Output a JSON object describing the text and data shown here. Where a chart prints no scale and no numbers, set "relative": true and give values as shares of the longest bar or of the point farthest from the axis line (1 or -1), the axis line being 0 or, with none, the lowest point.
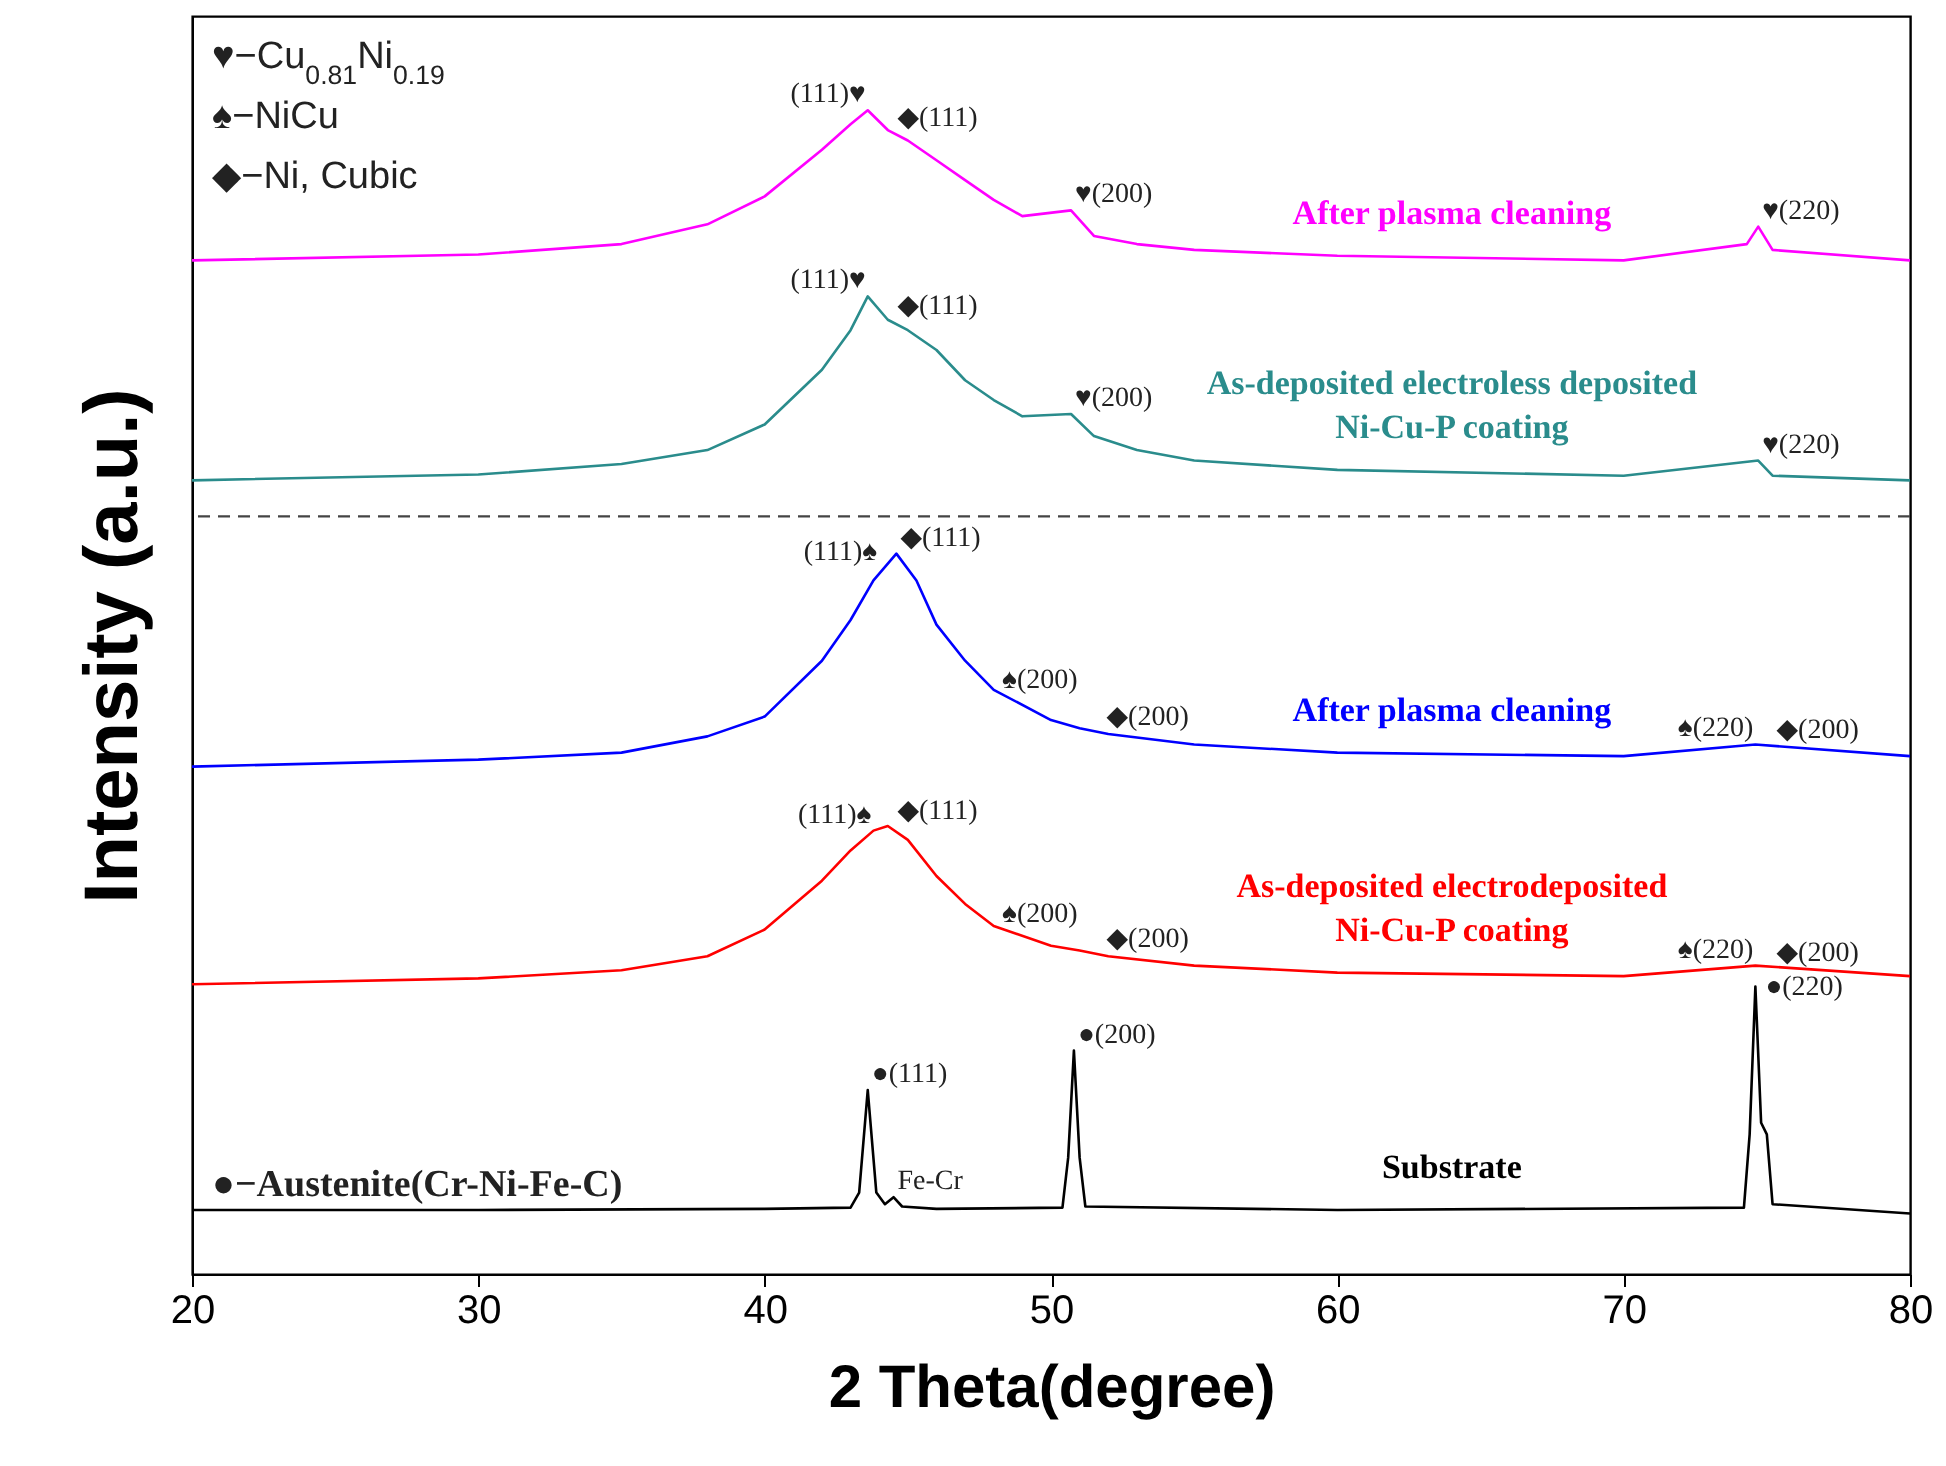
{
  "chart_data": {
    "type": "line",
    "relative": true,
    "xlabel": "2 Theta(degree)",
    "ylabel": "Intensity (a.u.)",
    "xlim": [
      20,
      80
    ],
    "xticks": [
      20,
      30,
      40,
      50,
      60,
      70,
      80
    ],
    "series": [
      {
        "name": "After plasma cleaning",
        "color": "#ff00ff",
        "x": [
          20,
          30,
          35,
          38,
          40,
          42,
          43,
          43.6,
          44.3,
          45,
          46,
          47,
          48,
          49,
          50.7,
          51.5,
          53,
          55,
          60,
          70,
          74.3,
          74.7,
          75.2,
          80
        ],
        "values": [
          0.871,
          0.876,
          0.885,
          0.902,
          0.926,
          0.966,
          0.988,
          1.0,
          0.983,
          0.974,
          0.957,
          0.94,
          0.923,
          0.909,
          0.914,
          0.892,
          0.885,
          0.88,
          0.875,
          0.871,
          0.885,
          0.9,
          0.88,
          0.871
        ]
      },
      {
        "name": "As-deposited electroless deposited Ni-Cu-P coating",
        "color": "#2a8c8c",
        "x": [
          20,
          30,
          35,
          38,
          40,
          42,
          43,
          43.6,
          44.3,
          45,
          46,
          47,
          48,
          49,
          50.7,
          51.5,
          53,
          55,
          60,
          70,
          74.7,
          75.2,
          80
        ],
        "values": [
          0.682,
          0.687,
          0.696,
          0.708,
          0.73,
          0.777,
          0.811,
          0.84,
          0.82,
          0.811,
          0.794,
          0.768,
          0.751,
          0.737,
          0.739,
          0.72,
          0.708,
          0.699,
          0.691,
          0.686,
          0.699,
          0.686,
          0.682
        ]
      },
      {
        "name": "After plasma cleaning",
        "color": "#0000ff",
        "x": [
          20,
          30,
          35,
          38,
          40,
          42,
          43,
          43.8,
          44.6,
          45.3,
          46,
          47,
          48,
          50,
          51,
          52,
          55,
          60,
          70,
          74.6,
          80
        ],
        "values": [
          0.436,
          0.442,
          0.448,
          0.462,
          0.479,
          0.527,
          0.562,
          0.596,
          0.619,
          0.596,
          0.558,
          0.527,
          0.502,
          0.476,
          0.469,
          0.464,
          0.455,
          0.448,
          0.445,
          0.455,
          0.445
        ]
      },
      {
        "name": "As-deposited electrodeposited Ni-Cu-P coating",
        "color": "#ff0000",
        "x": [
          20,
          30,
          35,
          38,
          40,
          42,
          43,
          43.8,
          44.3,
          45,
          46,
          47,
          48,
          50,
          51,
          52,
          55,
          60,
          70,
          74.6,
          80
        ],
        "values": [
          0.249,
          0.254,
          0.261,
          0.273,
          0.296,
          0.338,
          0.364,
          0.381,
          0.385,
          0.373,
          0.342,
          0.318,
          0.299,
          0.282,
          0.278,
          0.273,
          0.265,
          0.259,
          0.256,
          0.265,
          0.256
        ]
      },
      {
        "name": "Substrate",
        "color": "#000000",
        "x": [
          20,
          30,
          40,
          43,
          43.3,
          43.6,
          43.9,
          44.2,
          44.5,
          44.8,
          46,
          50.4,
          50.6,
          50.8,
          51,
          51.2,
          60,
          74.2,
          74.4,
          74.6,
          74.8,
          75,
          75.2,
          80
        ],
        "values": [
          0.055,
          0.055,
          0.056,
          0.057,
          0.07,
          0.158,
          0.07,
          0.06,
          0.066,
          0.058,
          0.056,
          0.057,
          0.1,
          0.192,
          0.1,
          0.058,
          0.055,
          0.057,
          0.12,
          0.247,
          0.13,
          0.12,
          0.06,
          0.052
        ]
      }
    ],
    "ref_lines": [
      {
        "axis": "y",
        "value": 0.651,
        "line_style": "dashed",
        "color": "#444444"
      }
    ],
    "annotations": [
      "♥−Cu$_{0.81}$Ni$_{0.19}$",
      "♠−NiCu",
      "◆−Ni, Cubic",
      "●−Austenite(Cr-Ni-Fe-C)",
      {
        "text": "(111)♥",
        "x": 43.6,
        "y": 1.0
      },
      {
        "text": "◆(111)",
        "x": 44.5,
        "y": 0.98
      },
      {
        "text": "♥(200)",
        "x": 50.7,
        "y": 0.914
      },
      {
        "text": "♥(220)",
        "x": 74.7,
        "y": 0.9
      },
      {
        "text": "(111)♥",
        "x": 43.6,
        "y": 0.84
      },
      {
        "text": "◆(111)",
        "x": 44.5,
        "y": 0.818
      },
      {
        "text": "♥(200)",
        "x": 50.7,
        "y": 0.739
      },
      {
        "text": "♥(220)",
        "x": 74.7,
        "y": 0.699
      },
      {
        "text": "(111)♠",
        "x": 44.0,
        "y": 0.607
      },
      {
        "text": "◆(111)",
        "x": 44.6,
        "y": 0.619
      },
      {
        "text": "♠(200)",
        "x": 51.0,
        "y": 0.469
      },
      {
        "text": "◆(200)",
        "x": 51.8,
        "y": 0.465
      },
      {
        "text": "♠(220)",
        "x": 74.6,
        "y": 0.455
      },
      {
        "text": "◆(200)",
        "x": 75.2,
        "y": 0.45
      },
      {
        "text": "(111)♠",
        "x": 43.8,
        "y": 0.381
      },
      {
        "text": "◆(111)",
        "x": 44.5,
        "y": 0.384
      },
      {
        "text": "♠(200)",
        "x": 51.0,
        "y": 0.278
      },
      {
        "text": "◆(200)",
        "x": 51.8,
        "y": 0.274
      },
      {
        "text": "♠(220)",
        "x": 74.6,
        "y": 0.265
      },
      {
        "text": "◆(200)",
        "x": 75.2,
        "y": 0.262
      },
      {
        "text": "●(111)",
        "x": 43.6,
        "y": 0.158
      },
      {
        "text": "●(200)",
        "x": 50.8,
        "y": 0.192
      },
      {
        "text": "●(220)",
        "x": 74.6,
        "y": 0.247
      },
      {
        "text": "Fe-Cr",
        "x": 44.5,
        "y": 0.066
      }
    ]
  }
}
